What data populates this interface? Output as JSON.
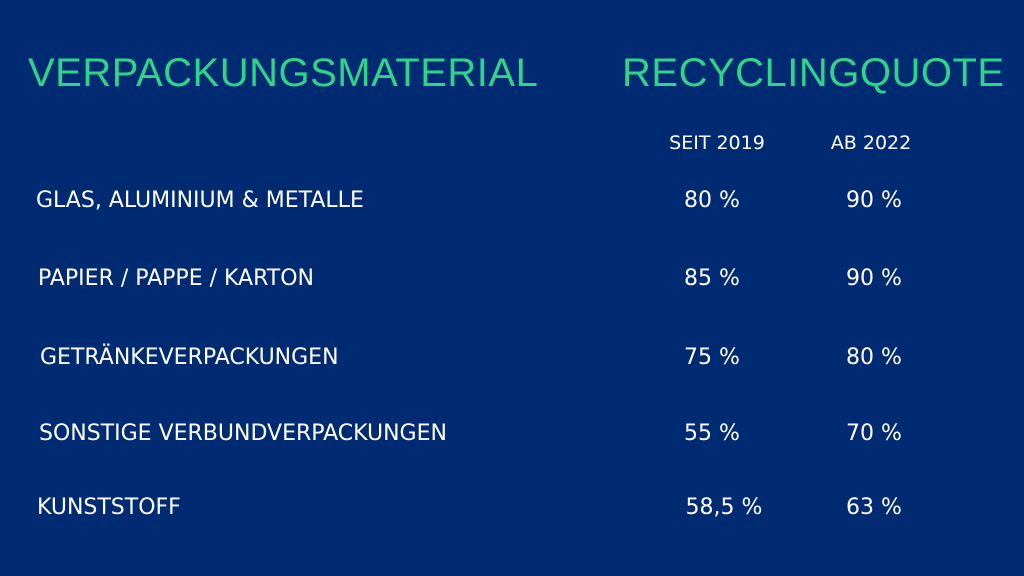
{
  "headings": {
    "material": "VERPACKUNGSMATERIAL",
    "quote": "RECYCLINGQUOTE"
  },
  "columns": {
    "since_2019": "SEIT 2019",
    "from_2022": "AB 2022"
  },
  "rows": [
    {
      "material": "GLAS, ALUMINIUM & METALLE",
      "since_2019": "80 %",
      "from_2022": "90 %"
    },
    {
      "material": "PAPIER / PAPPE / KARTON",
      "since_2019": "85 %",
      "from_2022": "90 %"
    },
    {
      "material": "GETRÄNKEVERPACKUNGEN",
      "since_2019": "75 %",
      "from_2022": "80 %"
    },
    {
      "material": "SONSTIGE VERBUNDVERPACKUNGEN",
      "since_2019": "55 %",
      "from_2022": "70 %"
    },
    {
      "material": "KUNSTSTOFF",
      "since_2019": "58,5 %",
      "from_2022": "63 %"
    }
  ],
  "colors": {
    "background": "#002b73",
    "heading": "#2fd48a",
    "text": "#ffffff"
  }
}
